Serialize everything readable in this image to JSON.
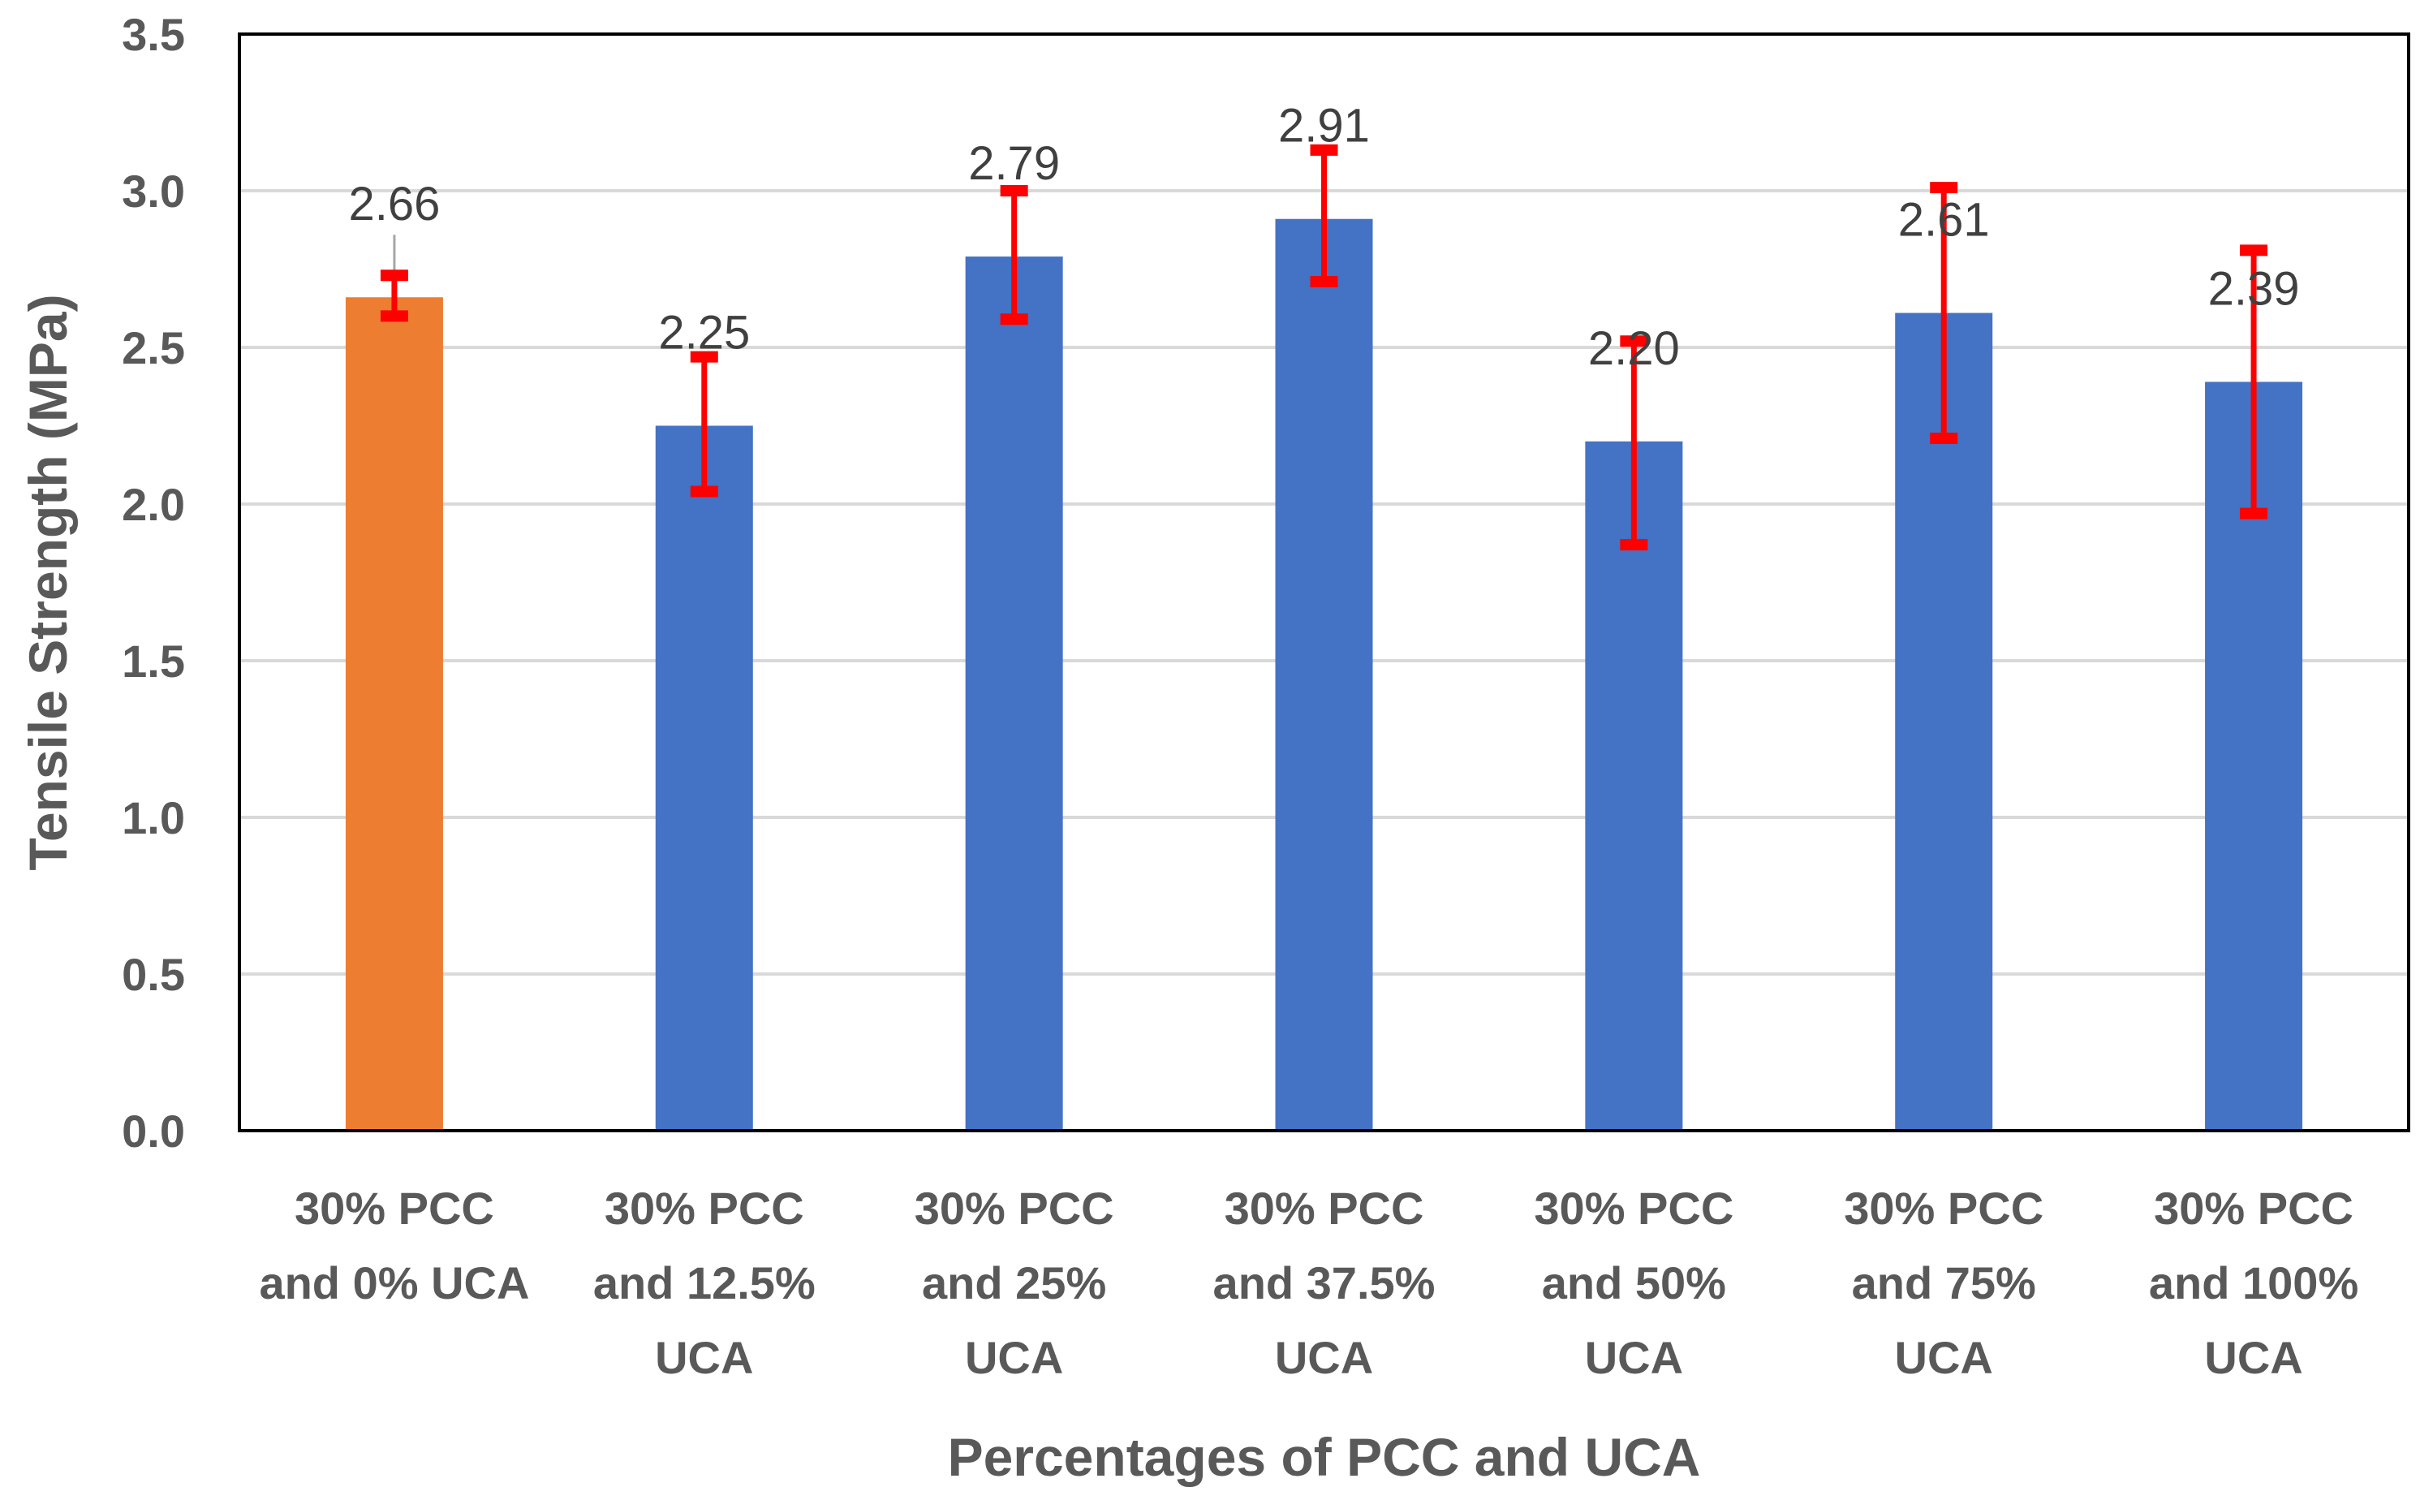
{
  "chart_data": {
    "type": "bar",
    "title": "",
    "xlabel": "Percentages of PCC and UCA",
    "ylabel": "Tensile Strength (MPa)",
    "ylim": [
      0,
      3.5
    ],
    "yticks": [
      "0.0",
      "0.5",
      "1.0",
      "1.5",
      "2.0",
      "2.5",
      "3.0",
      "3.5"
    ],
    "ytick_values": [
      0,
      0.5,
      1.0,
      1.5,
      2.0,
      2.5,
      3.0,
      3.5
    ],
    "grid": true,
    "categories": [
      [
        "30% PCC",
        "and 0% UCA"
      ],
      [
        "30% PCC",
        "and 12.5%",
        "UCA"
      ],
      [
        "30% PCC",
        "and 25%",
        "UCA"
      ],
      [
        "30% PCC",
        "and 37.5%",
        "UCA"
      ],
      [
        "30% PCC",
        "and 50%",
        "UCA"
      ],
      [
        "30% PCC",
        "and 75%",
        "UCA"
      ],
      [
        "30% PCC",
        "and 100%",
        "UCA"
      ]
    ],
    "values": [
      2.66,
      2.25,
      2.79,
      2.91,
      2.2,
      2.61,
      2.39
    ],
    "value_labels": [
      "2.66",
      "2.25",
      "2.79",
      "2.91",
      "2.20",
      "2.61",
      "2.39"
    ],
    "error_bars": [
      {
        "low": 2.6,
        "high": 2.73
      },
      {
        "low": 2.04,
        "high": 2.47
      },
      {
        "low": 2.59,
        "high": 3.0
      },
      {
        "low": 2.71,
        "high": 3.13
      },
      {
        "low": 1.87,
        "high": 2.52
      },
      {
        "low": 2.21,
        "high": 3.01
      },
      {
        "low": 1.97,
        "high": 2.81
      }
    ],
    "bar_colors": [
      "#ED7D31",
      "#4472C4",
      "#4472C4",
      "#4472C4",
      "#4472C4",
      "#4472C4",
      "#4472C4"
    ],
    "error_bar_color": "#FF0000",
    "gridline_color": "#D9D9D9",
    "axis_color": "#000000"
  }
}
